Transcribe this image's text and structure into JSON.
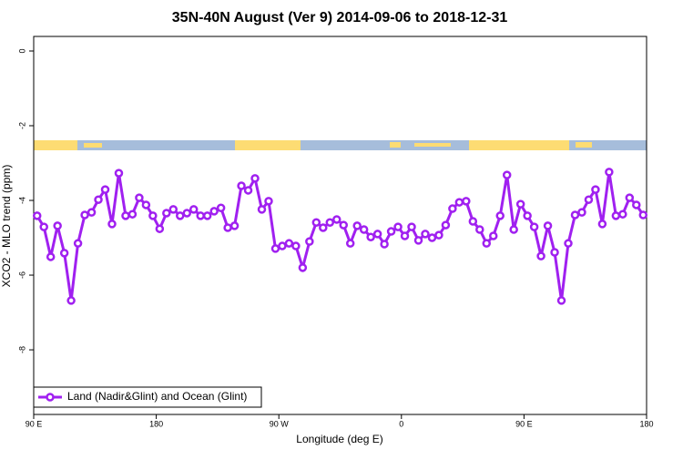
{
  "chart_data": {
    "type": "line",
    "title": "35N-40N August (Ver 9)   2014-09-06 to 2018-12-31",
    "x_label": "Longitude (deg E)",
    "y_label": "XCO2 - MLO trend (ppm)",
    "xlim": [
      90,
      540
    ],
    "ylim": [
      -9.73,
      0.39
    ],
    "xticks": [
      {
        "value": 90,
        "label": "90 E"
      },
      180,
      {
        "value": 270,
        "label": "90 W"
      },
      {
        "value": 360,
        "label": "0"
      },
      {
        "value": 450,
        "label": "90 E"
      },
      {
        "value": 540,
        "label": "180"
      }
    ],
    "yticks": [
      0,
      -2,
      -4,
      -6,
      -8
    ],
    "x": [
      92.5,
      97.5,
      102.5,
      107.5,
      112.5,
      117.5,
      122.5,
      127.5,
      132.5,
      137.5,
      142.5,
      147.5,
      152.5,
      157.5,
      162.5,
      167.5,
      172.5,
      177.5,
      182.5,
      187.5,
      192.5,
      197.5,
      202.5,
      207.5,
      212.5,
      217.5,
      222.5,
      227.5,
      232.5,
      237.5,
      242.5,
      247.5,
      252.5,
      257.5,
      262.5,
      267.5,
      272.5,
      277.5,
      282.5,
      287.5,
      292.5,
      297.5,
      302.5,
      307.5,
      312.5,
      317.5,
      322.5,
      327.5,
      332.5,
      337.5,
      342.5,
      347.5,
      352.5,
      357.5,
      362.5,
      367.5,
      372.5,
      377.5,
      382.5,
      387.5,
      392.5,
      397.5,
      402.5,
      407.5,
      412.5,
      417.5,
      422.5,
      427.5,
      432.5,
      437.5,
      442.5,
      447.5,
      452.5,
      457.5,
      462.5,
      467.5,
      472.5,
      477.5,
      482.5,
      487.5,
      492.5,
      497.5,
      502.5,
      507.5,
      512.5,
      517.5,
      522.5,
      527.5,
      532.5,
      537.5
    ],
    "series": [
      {
        "name": "Land (Nadir&Glint) and Ocean (Glint)",
        "color": "#a020f0",
        "values": [
          -4.41,
          -4.71,
          -5.51,
          -4.68,
          -5.41,
          -6.68,
          -5.15,
          -4.39,
          -4.32,
          -3.98,
          -3.71,
          -4.63,
          -3.27,
          -4.41,
          -4.37,
          -3.93,
          -4.12,
          -4.41,
          -4.76,
          -4.34,
          -4.24,
          -4.41,
          -4.34,
          -4.24,
          -4.41,
          -4.41,
          -4.29,
          -4.2,
          -4.73,
          -4.68,
          -3.61,
          -3.73,
          -3.41,
          -4.24,
          -4.02,
          -5.29,
          -5.22,
          -5.15,
          -5.22,
          -5.8,
          -5.1,
          -4.59,
          -4.73,
          -4.59,
          -4.51,
          -4.66,
          -5.15,
          -4.68,
          -4.78,
          -4.98,
          -4.9,
          -5.17,
          -4.83,
          -4.71,
          -4.95,
          -4.71,
          -5.07,
          -4.9,
          -5.0,
          -4.93,
          -4.66,
          -4.22,
          -4.05,
          -4.02,
          -4.56,
          -4.78,
          -5.15,
          -4.95,
          -4.41,
          -3.32,
          -4.78,
          -4.1,
          -4.41,
          -4.71,
          -5.49,
          -4.68,
          -5.39,
          -6.68,
          -5.15,
          -4.39,
          -4.32,
          -3.98,
          -3.71,
          -4.63,
          -3.24,
          -4.41,
          -4.37,
          -3.93,
          -4.12,
          -4.39
        ]
      }
    ]
  }
}
